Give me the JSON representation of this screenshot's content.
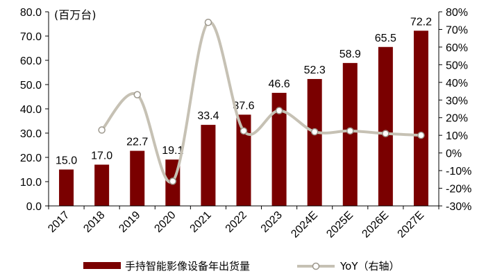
{
  "chart_data": {
    "type": "bar",
    "unit_label": "(百万台)",
    "categories": [
      "2017",
      "2018",
      "2019",
      "2020",
      "2021",
      "2022",
      "2023",
      "2024E",
      "2025E",
      "2026E",
      "2027E"
    ],
    "series": [
      {
        "name": "手持智能影像设备年出货量",
        "type": "bar",
        "axis": "left",
        "color": "#7a0000",
        "values": [
          15.0,
          17.0,
          22.7,
          19.1,
          33.4,
          37.6,
          46.6,
          52.3,
          58.9,
          65.5,
          72.2
        ],
        "labels": [
          "15.0",
          "17.0",
          "22.7",
          "19.1",
          "33.4",
          "37.6",
          "46.6",
          "52.3",
          "58.9",
          "65.5",
          "72.2"
        ]
      },
      {
        "name": "YoY（右轴）",
        "type": "line",
        "axis": "right",
        "color": "#c6c1b4",
        "marker": "circle-hollow",
        "smooth": true,
        "values": [
          null,
          13,
          33,
          -16,
          74,
          12.5,
          24,
          12,
          12.5,
          11,
          10
        ]
      }
    ],
    "y_left": {
      "min": 0,
      "max": 80,
      "ticks": [
        0,
        10,
        20,
        30,
        40,
        50,
        60,
        70,
        80
      ],
      "tick_labels": [
        "0.0",
        "10.0",
        "20.0",
        "30.0",
        "40.0",
        "50.0",
        "60.0",
        "70.0",
        "80.0"
      ]
    },
    "y_right": {
      "min": -30,
      "max": 80,
      "ticks": [
        -30,
        -20,
        -10,
        0,
        10,
        20,
        30,
        40,
        50,
        60,
        70,
        80
      ],
      "tick_labels": [
        "-30%",
        "-20%",
        "-10%",
        "0%",
        "10%",
        "20%",
        "30%",
        "40%",
        "50%",
        "60%",
        "70%",
        "80%"
      ]
    },
    "legend_position": "bottom",
    "grid": false
  }
}
